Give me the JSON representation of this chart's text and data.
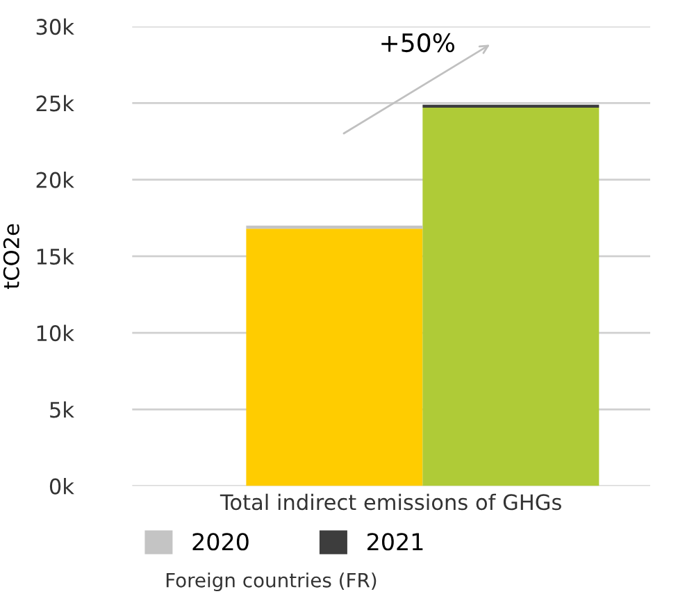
{
  "chart_data": {
    "type": "bar",
    "stacked": true,
    "ylabel": "tCO2e",
    "xlabel": "Total indirect emissions of GHGs",
    "categories": [
      null,
      null
    ],
    "series": [
      {
        "color": "#ffcc00",
        "values": [
          16800,
          null
        ]
      },
      {
        "color": "#afcb37",
        "values": [
          null,
          24700
        ]
      },
      {
        "name": "2020",
        "color": "#c4c4c4",
        "values": [
          200,
          null
        ]
      },
      {
        "name": "2021",
        "color": "#3d3d3d",
        "values": [
          null,
          200
        ]
      }
    ],
    "ylim": [
      0,
      30000
    ],
    "yticks": [
      {
        "value": 0,
        "label": "0k"
      },
      {
        "value": 5000,
        "label": "5k"
      },
      {
        "value": 10000,
        "label": "10k"
      },
      {
        "value": 15000,
        "label": "15k"
      },
      {
        "value": 20000,
        "label": "20k"
      },
      {
        "value": 25000,
        "label": "25k"
      },
      {
        "value": 30000,
        "label": "30k"
      }
    ],
    "grid": "y",
    "legend": "bottom",
    "legend_title": "Foreign countries (FR)",
    "annotations": [
      "+50%"
    ]
  }
}
